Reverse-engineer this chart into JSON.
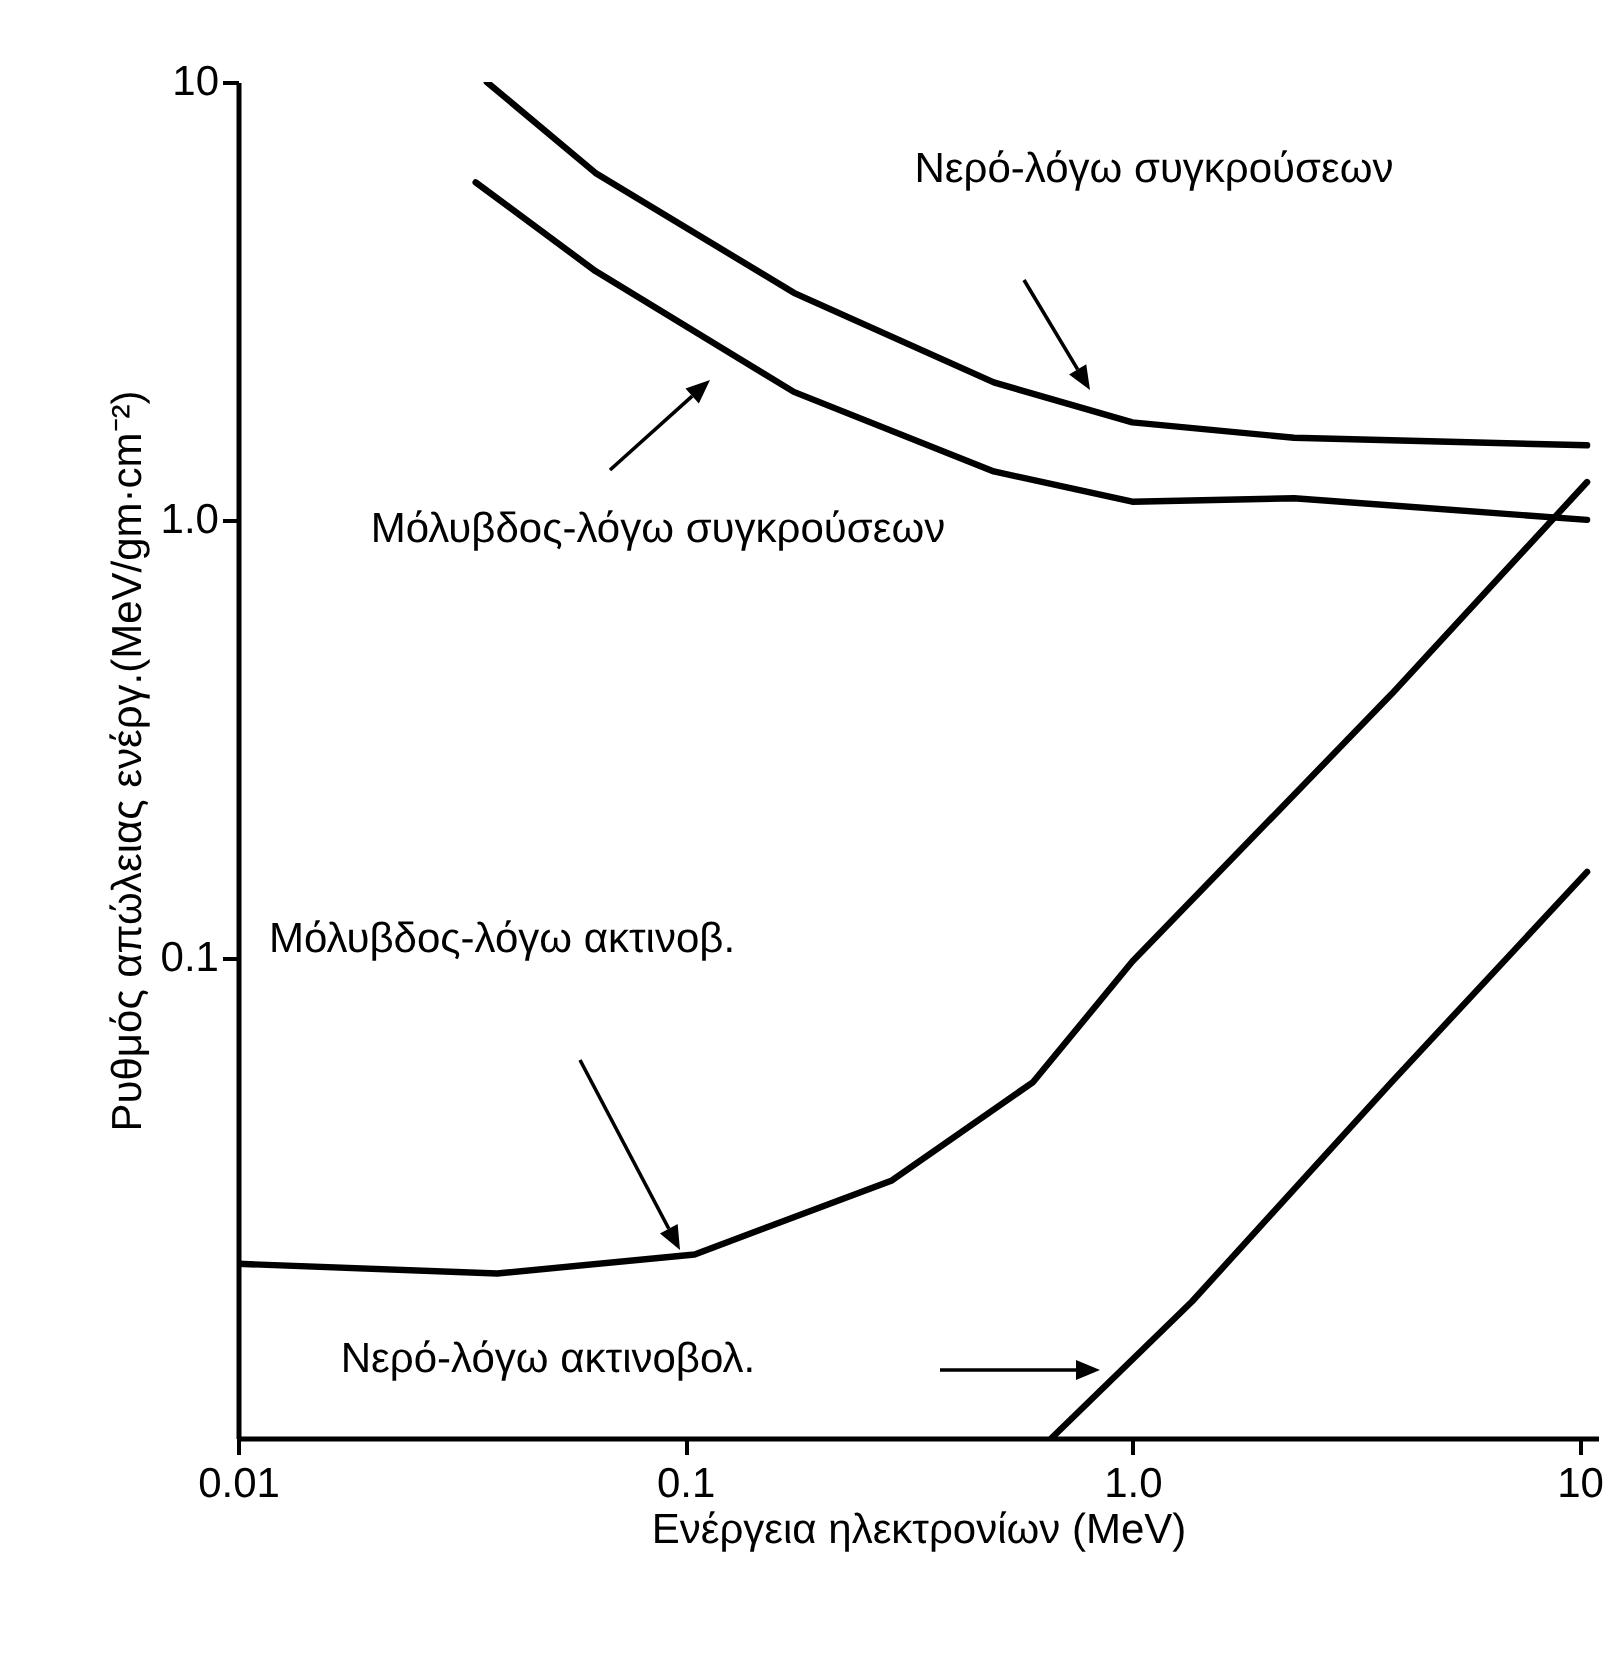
{
  "chart_data": {
    "type": "line",
    "xlabel": "Ενέργεια ηλεκτρονίων (MeV)",
    "ylabel": "Ρυθμός απώλειας ενέργ.(MeV/gm·cm⁻²)",
    "log": "xy",
    "grid": false,
    "legend": false,
    "marker": "none",
    "line_style": "solid",
    "xlim": [
      0.01,
      11
    ],
    "xticks": [
      0.01,
      0.1,
      {
        "value": 1,
        "label": "1.0"
      },
      10
    ],
    "ylim": [
      0.008,
      10
    ],
    "yticks": [
      0.1,
      {
        "value": 1,
        "label": "1.0"
      },
      10
    ],
    "series": [
      {
        "color": "#000000",
        "x": [
          0.036,
          0.063,
          0.175,
          0.49,
          1.0,
          2.3,
          10.4
        ],
        "values": [
          10,
          6.2,
          3.3,
          2.06,
          1.67,
          1.54,
          1.48
        ]
      },
      {
        "color": "#000000",
        "x": [
          0.034,
          0.063,
          0.175,
          0.49,
          1.0,
          2.3,
          10.4
        ],
        "values": [
          5.9,
          3.7,
          1.96,
          1.29,
          1.1,
          1.12,
          1.0
        ]
      },
      {
        "color": "#000000",
        "x": [
          0.01,
          0.038,
          0.105,
          0.29,
          0.6,
          1.0,
          3.8,
          10.4
        ],
        "values": [
          0.02,
          0.019,
          0.021,
          0.031,
          0.052,
          0.098,
          0.4,
          1.22
        ]
      },
      {
        "color": "#000000",
        "x": [
          0.66,
          1.36,
          3.8,
          10.4
        ],
        "values": [
          0.008,
          0.0164,
          0.052,
          0.157
        ]
      }
    ],
    "annotations": [
      "Νερό-λόγω συγκρούσεων",
      "Μόλυβδος-λόγω συγκρούσεων",
      "Μόλυβδος-λόγω ακτινοβ.",
      "Νερό-λόγω ακτινοβολ."
    ]
  }
}
